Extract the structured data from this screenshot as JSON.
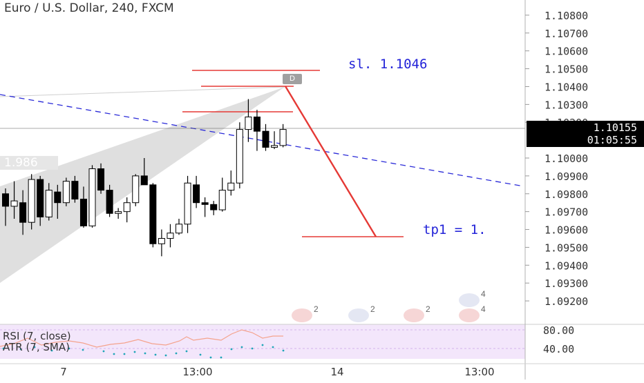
{
  "header": {
    "title": "Euro / U.S. Dollar, 240, FXCM"
  },
  "price_axis": {
    "ticks": [
      "1.10800",
      "1.10700",
      "1.10600",
      "1.10500",
      "1.10400",
      "1.10300",
      "1.10200",
      "1.10000",
      "1.09900",
      "1.09800",
      "1.09700",
      "1.09600",
      "1.09500",
      "1.09400",
      "1.09300",
      "1.09200"
    ],
    "last_price": "1.10155",
    "countdown": "01:05:55"
  },
  "time_axis": {
    "labels": [
      "7",
      "13:00",
      "14",
      "13:00"
    ]
  },
  "pattern_label": "1.986",
  "annotations": {
    "stop_loss": "sl. 1.1046",
    "take_profit": "tp1 = 1.",
    "point_d": "D"
  },
  "indicator_pane": {
    "rsi_label": "RSI (7, close)",
    "atr_label": "ATR (7, SMA)",
    "ticks": [
      "80.00",
      "40.00"
    ],
    "background": "#f3e6fb"
  },
  "events": [
    {
      "kind": "flag",
      "count": "2"
    },
    {
      "kind": "cookie",
      "count": "2"
    },
    {
      "kind": "cookie",
      "count": "2"
    },
    {
      "kind": "flag",
      "count": "4"
    },
    {
      "kind": "cookie",
      "count": "4"
    }
  ],
  "colors": {
    "up_candle": "#ffffff",
    "down_candle": "#000000",
    "trend_line": "#2a2ad8",
    "level_lines": "#e53935",
    "pattern_fill": "#d9d9d9",
    "rsi_line": "#f4a28c",
    "atr_dots": "#1fa5b8"
  },
  "chart_data": {
    "type": "candlestick",
    "title": "Euro / U.S. Dollar, 240, FXCM",
    "y_range": [
      1.0915,
      1.1085
    ],
    "x_labels": [
      "7",
      "13:00",
      "14",
      "13:00"
    ],
    "candles": [
      {
        "o": 1.098,
        "h": 1.0983,
        "l": 1.0962,
        "c": 1.0973
      },
      {
        "o": 1.0973,
        "h": 1.0987,
        "l": 1.0966,
        "c": 1.0976
      },
      {
        "o": 1.0975,
        "h": 1.0982,
        "l": 1.0957,
        "c": 1.0964
      },
      {
        "o": 1.0964,
        "h": 1.0991,
        "l": 1.096,
        "c": 1.0988
      },
      {
        "o": 1.0988,
        "h": 1.099,
        "l": 1.0962,
        "c": 1.0967
      },
      {
        "o": 1.0967,
        "h": 1.0986,
        "l": 1.0965,
        "c": 1.0982
      },
      {
        "o": 1.0981,
        "h": 1.0985,
        "l": 1.0966,
        "c": 1.0975
      },
      {
        "o": 1.0975,
        "h": 1.0989,
        "l": 1.0973,
        "c": 1.0987
      },
      {
        "o": 1.0987,
        "h": 1.099,
        "l": 1.0975,
        "c": 1.0977
      },
      {
        "o": 1.0977,
        "h": 1.0984,
        "l": 1.0961,
        "c": 1.0962
      },
      {
        "o": 1.0962,
        "h": 1.0996,
        "l": 1.0961,
        "c": 1.0994
      },
      {
        "o": 1.0994,
        "h": 1.0997,
        "l": 1.098,
        "c": 1.0982
      },
      {
        "o": 1.0982,
        "h": 1.0985,
        "l": 1.0967,
        "c": 1.0969
      },
      {
        "o": 1.0969,
        "h": 1.0972,
        "l": 1.0966,
        "c": 1.097
      },
      {
        "o": 1.097,
        "h": 1.0978,
        "l": 1.0964,
        "c": 1.0975
      },
      {
        "o": 1.0975,
        "h": 1.0991,
        "l": 1.0973,
        "c": 1.099
      },
      {
        "o": 1.099,
        "h": 1.1,
        "l": 1.0985,
        "c": 1.0985
      },
      {
        "o": 1.0985,
        "h": 1.0986,
        "l": 1.095,
        "c": 1.0952
      },
      {
        "o": 1.0952,
        "h": 1.096,
        "l": 1.0945,
        "c": 1.0955
      },
      {
        "o": 1.0955,
        "h": 1.0963,
        "l": 1.095,
        "c": 1.0958
      },
      {
        "o": 1.0958,
        "h": 1.0966,
        "l": 1.0957,
        "c": 1.0963
      },
      {
        "o": 1.0963,
        "h": 1.099,
        "l": 1.0958,
        "c": 1.0986
      },
      {
        "o": 1.0985,
        "h": 1.099,
        "l": 1.0972,
        "c": 1.0975
      },
      {
        "o": 1.0975,
        "h": 1.0978,
        "l": 1.0967,
        "c": 1.0974
      },
      {
        "o": 1.0974,
        "h": 1.0976,
        "l": 1.0968,
        "c": 1.0971
      },
      {
        "o": 1.0971,
        "h": 1.0989,
        "l": 1.097,
        "c": 1.0982
      },
      {
        "o": 1.0982,
        "h": 1.0993,
        "l": 1.0979,
        "c": 1.0986
      },
      {
        "o": 1.0986,
        "h": 1.102,
        "l": 1.0983,
        "c": 1.1016
      },
      {
        "o": 1.1016,
        "h": 1.1033,
        "l": 1.1009,
        "c": 1.1023
      },
      {
        "o": 1.1023,
        "h": 1.1027,
        "l": 1.1004,
        "c": 1.1015
      },
      {
        "o": 1.1015,
        "h": 1.1019,
        "l": 1.1004,
        "c": 1.1006
      },
      {
        "o": 1.1006,
        "h": 1.1015,
        "l": 1.1005,
        "c": 1.1007
      },
      {
        "o": 1.1007,
        "h": 1.1019,
        "l": 1.1006,
        "c": 1.1016
      }
    ],
    "levels": {
      "stop_loss": 1.1046,
      "entry_upper": 1.1038,
      "entry_lower": 1.1024,
      "take_profit": 1.0958
    },
    "projection": {
      "from": 1.1038,
      "to": 1.0958
    },
    "indicator": {
      "ylim": [
        20,
        100
      ],
      "ticks": [
        80,
        40
      ]
    }
  }
}
